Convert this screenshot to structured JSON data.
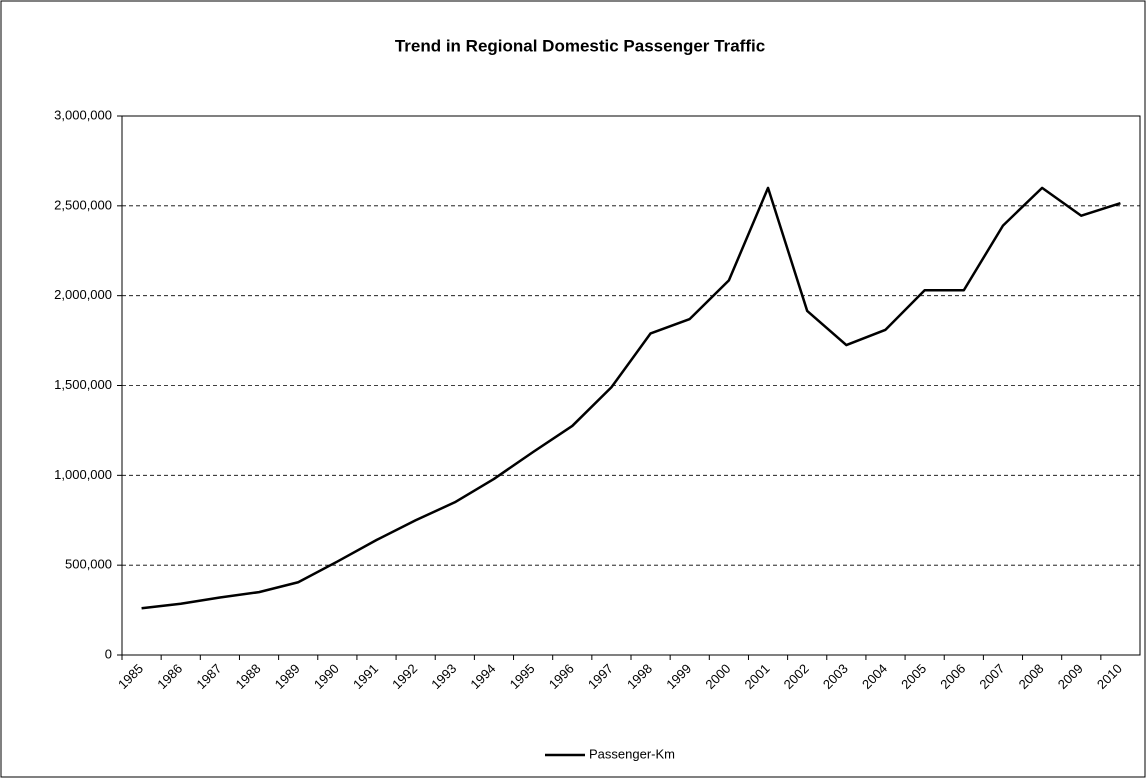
{
  "chart_data": {
    "type": "line",
    "title": "Trend in Regional Domestic Passenger Traffic",
    "categories": [
      "1985",
      "1986",
      "1987",
      "1988",
      "1989",
      "1990",
      "1991",
      "1992",
      "1993",
      "1994",
      "1995",
      "1996",
      "1997",
      "1998",
      "1999",
      "2000",
      "2001",
      "2002",
      "2003",
      "2004",
      "2005",
      "2006",
      "2007",
      "2008",
      "2009",
      "2010"
    ],
    "series": [
      {
        "name": "Passenger-Km",
        "color": "#000000",
        "values": [
          260000,
          285000,
          320000,
          350000,
          405000,
          520000,
          640000,
          750000,
          850000,
          980000,
          1130000,
          1275000,
          1490000,
          1790000,
          1870000,
          2085000,
          2600000,
          1915000,
          1725000,
          1810000,
          2030000,
          2030000,
          2390000,
          2600000,
          2445000,
          2515000
        ]
      }
    ],
    "ylim": [
      0,
      3000000
    ],
    "yticks": [
      0,
      {
        "value": 500000,
        "label": "500,000"
      },
      {
        "value": 1000000,
        "label": "1,000,000"
      },
      {
        "value": 1500000,
        "label": "1,500,000"
      },
      {
        "value": 2000000,
        "label": "2,000,000"
      },
      {
        "value": 2500000,
        "label": "2,500,000"
      },
      {
        "value": 3000000,
        "label": "3,000,000"
      }
    ],
    "grid": true,
    "legend": "bottom"
  }
}
